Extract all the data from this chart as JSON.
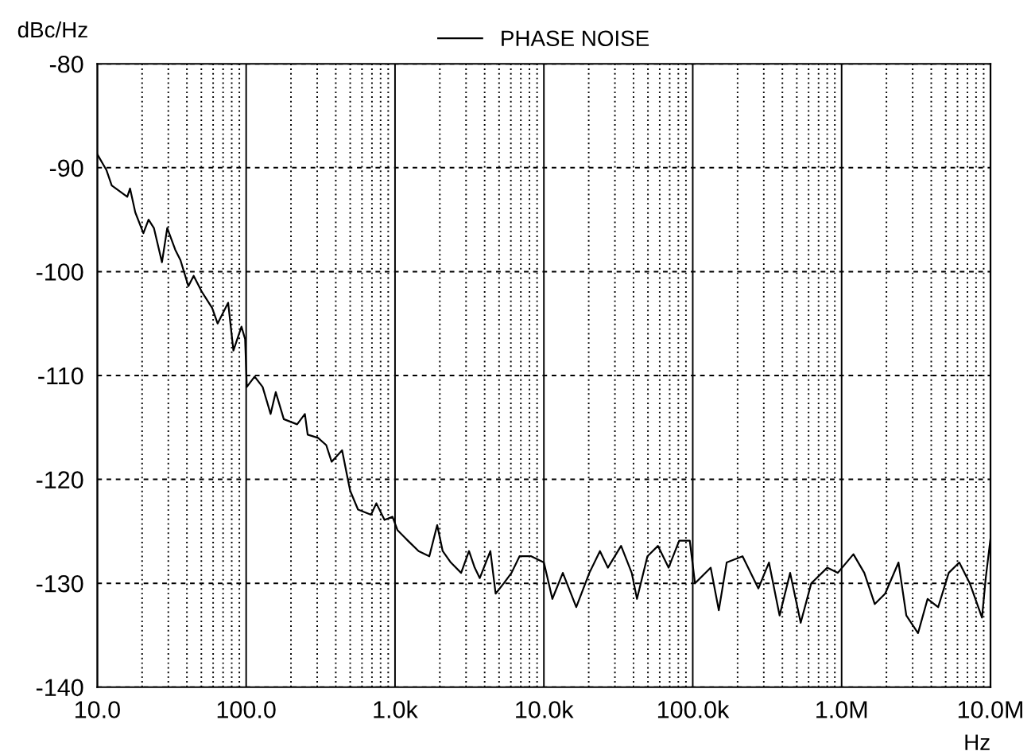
{
  "chart_data": {
    "type": "line",
    "ylabel": "dBc/Hz",
    "xlabel": "Hz",
    "log": "x",
    "grid": true,
    "legend": "top",
    "marker": "none",
    "line_style": "solid",
    "xlim": [
      10,
      10000000
    ],
    "xticks": [
      {
        "value": 10,
        "label": "10.0"
      },
      {
        "value": 100,
        "label": "100.0"
      },
      {
        "value": 1000,
        "label": "1.0k"
      },
      {
        "value": 10000,
        "label": "10.0k"
      },
      {
        "value": 100000,
        "label": "100.0k"
      },
      {
        "value": 1000000,
        "label": "1.0M"
      },
      {
        "value": 10000000,
        "label": "10.0M"
      }
    ],
    "ylim": [
      -140,
      -80
    ],
    "yticks": [
      -80,
      -90,
      -100,
      -110,
      -120,
      -130,
      -140
    ],
    "series": [
      {
        "name": "PHASE NOISE",
        "color": "#000000",
        "x": [
          10,
          11.5,
          12.5,
          15.9,
          16.6,
          18.0,
          20.4,
          22.1,
          24.0,
          27.2,
          29.5,
          33.4,
          36.2,
          40.9,
          44.4,
          50.2,
          59.1,
          64.3,
          75.7,
          82.1,
          93.0,
          98.4,
          101,
          114,
          129,
          146,
          158,
          179,
          220,
          248,
          259,
          304,
          345,
          375,
          441,
          479,
          500,
          564,
          690,
          749,
          850,
          962,
          1040,
          1220,
          1440,
          1700,
          1920,
          2090,
          2370,
          2780,
          3140,
          3430,
          3710,
          4370,
          4740,
          5380,
          6060,
          6860,
          8220,
          10000,
          11400,
          13400,
          16500,
          20200,
          23800,
          26900,
          33000,
          38900,
          42200,
          49600,
          58400,
          68800,
          81100,
          95500,
          103500,
          132000,
          149600,
          169000,
          216000,
          276000,
          325000,
          383000,
          451000,
          531000,
          625000,
          800000,
          942000,
          1200000,
          1420000,
          1670000,
          1960000,
          2410000,
          2720000,
          3260000,
          3780000,
          4450000,
          5240000,
          6170000,
          7260000,
          8770000,
          9290000,
          10000000
        ],
        "values": [
          -88.7,
          -90.2,
          -91.7,
          -92.8,
          -92.0,
          -94.3,
          -96.3,
          -95.0,
          -95.8,
          -99.1,
          -95.8,
          -97.9,
          -98.9,
          -101.4,
          -100.4,
          -101.9,
          -103.5,
          -105.0,
          -103.0,
          -107.6,
          -105.3,
          -106.5,
          -111.1,
          -110.1,
          -111.1,
          -113.7,
          -111.6,
          -114.2,
          -114.7,
          -113.7,
          -115.7,
          -116.0,
          -116.7,
          -118.3,
          -117.2,
          -119.8,
          -121.1,
          -122.9,
          -123.4,
          -122.3,
          -123.9,
          -123.6,
          -124.9,
          -125.9,
          -126.9,
          -127.4,
          -124.4,
          -126.9,
          -128.0,
          -129.0,
          -126.9,
          -128.5,
          -129.5,
          -126.9,
          -131.0,
          -130.0,
          -129.0,
          -127.4,
          -127.4,
          -128.0,
          -131.5,
          -129.0,
          -132.3,
          -129.0,
          -126.9,
          -128.5,
          -126.4,
          -129.0,
          -131.5,
          -127.4,
          -126.4,
          -128.5,
          -125.9,
          -125.9,
          -130.0,
          -128.5,
          -132.6,
          -128.0,
          -127.4,
          -130.5,
          -128.0,
          -133.1,
          -129.0,
          -133.8,
          -130.0,
          -128.5,
          -129.0,
          -127.2,
          -129.0,
          -132.0,
          -131.0,
          -128.0,
          -133.1,
          -134.8,
          -131.5,
          -132.3,
          -129.0,
          -128.0,
          -130.0,
          -133.3,
          -129.5,
          -125.7
        ]
      }
    ]
  }
}
